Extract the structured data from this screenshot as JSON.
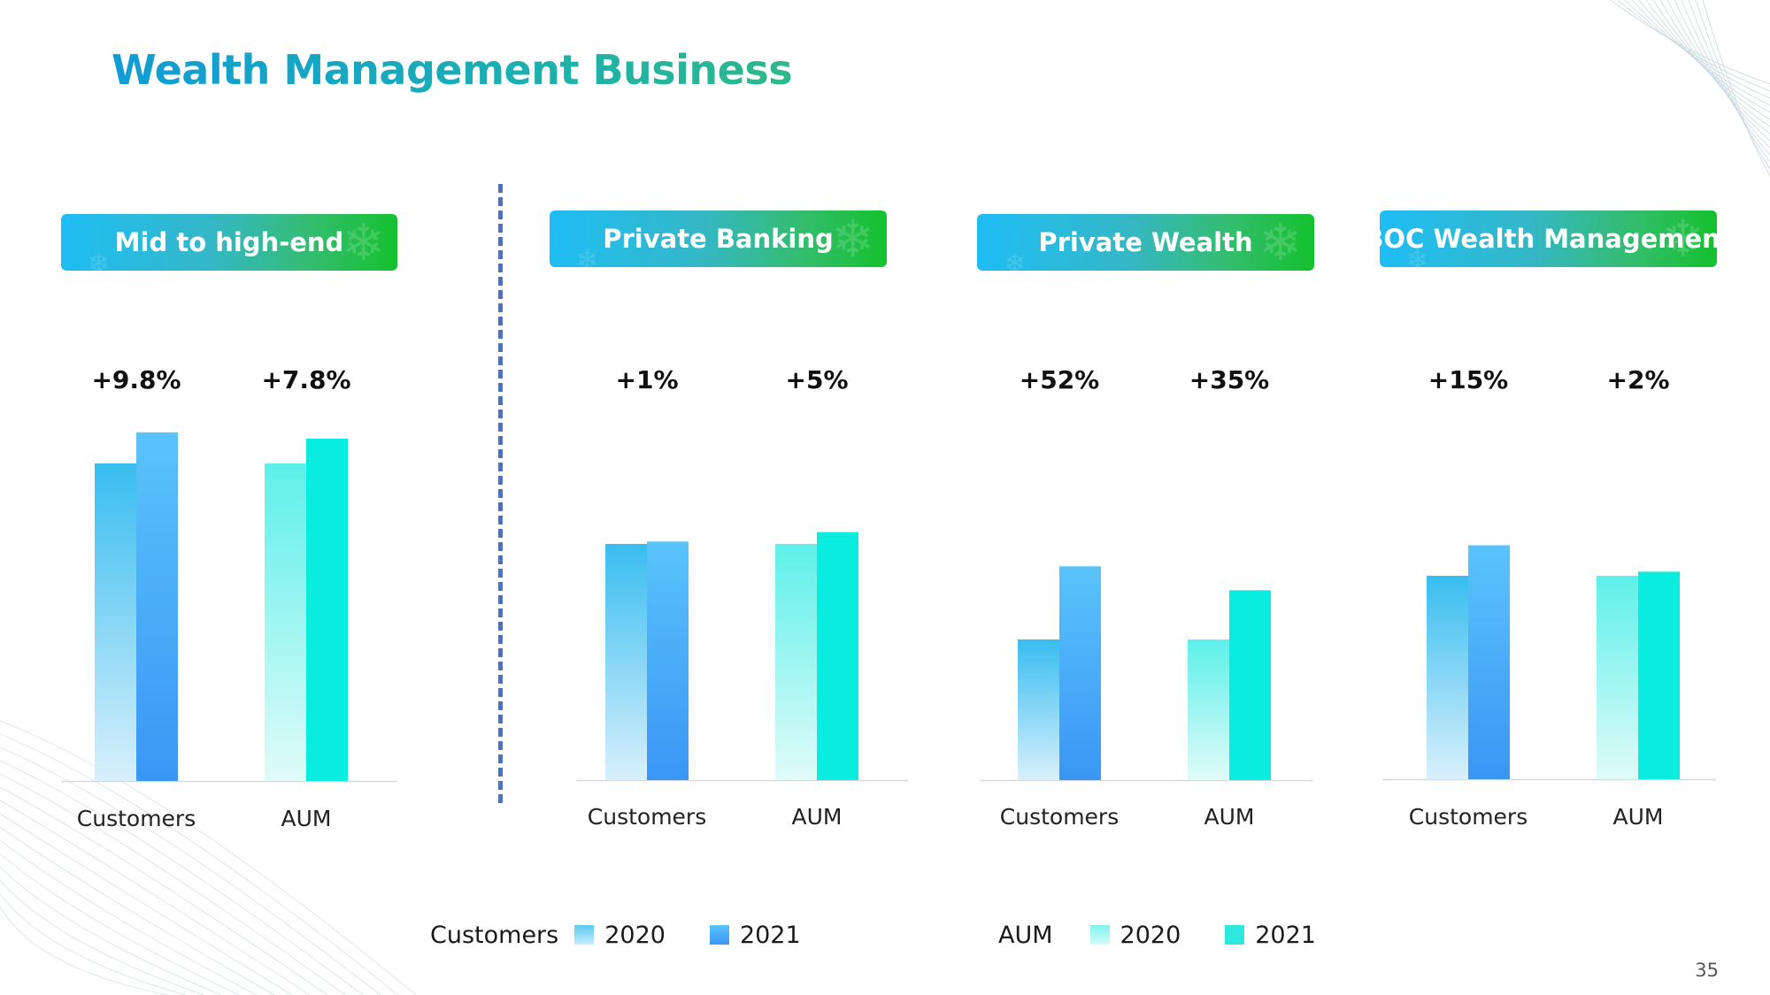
{
  "title": "Wealth Management Business",
  "page_number": "35",
  "colors": {
    "customers_2020_top": "#38bdf0",
    "customers_2020_bottom": "#d8f0fb",
    "customers_2021_top": "#5ac3fb",
    "customers_2021_bottom": "#3a96f5",
    "aum_2020_top": "#5ef0ea",
    "aum_2020_bottom": "#e0fbf8",
    "aum_2021": "#09ece0",
    "divider": "#4a72c4",
    "header_gradient_start": "#1ebdf4",
    "header_gradient_end": "#14c12e"
  },
  "legend": {
    "customers_label": "Customers",
    "aum_label": "AUM",
    "year_2020": "2020",
    "year_2021": "2021"
  },
  "chart_data": [
    {
      "type": "bar",
      "title": "Mid to high-end",
      "categories": [
        "Customers",
        "AUM"
      ],
      "growth_labels": [
        "+9.8%",
        "+7.8%"
      ],
      "series": [
        {
          "name": "2020",
          "values": [
            100,
            100
          ]
        },
        {
          "name": "2021",
          "values": [
            109.8,
            107.8
          ]
        }
      ]
    },
    {
      "type": "bar",
      "title": "Private Banking",
      "categories": [
        "Customers",
        "AUM"
      ],
      "growth_labels": [
        "+1%",
        "+5%"
      ],
      "series": [
        {
          "name": "2020",
          "values": [
            100,
            100
          ]
        },
        {
          "name": "2021",
          "values": [
            101,
            105
          ]
        }
      ]
    },
    {
      "type": "bar",
      "title": "Private Wealth",
      "categories": [
        "Customers",
        "AUM"
      ],
      "growth_labels": [
        "+52%",
        "+35%"
      ],
      "series": [
        {
          "name": "2020",
          "values": [
            100,
            100
          ]
        },
        {
          "name": "2021",
          "values": [
            152,
            135
          ]
        }
      ]
    },
    {
      "type": "bar",
      "title": "BOC Wealth Management",
      "categories": [
        "Customers",
        "AUM"
      ],
      "growth_labels": [
        "+15%",
        "+2%"
      ],
      "series": [
        {
          "name": "2020",
          "values": [
            100,
            100
          ]
        },
        {
          "name": "2021",
          "values": [
            115,
            102
          ]
        }
      ]
    }
  ]
}
